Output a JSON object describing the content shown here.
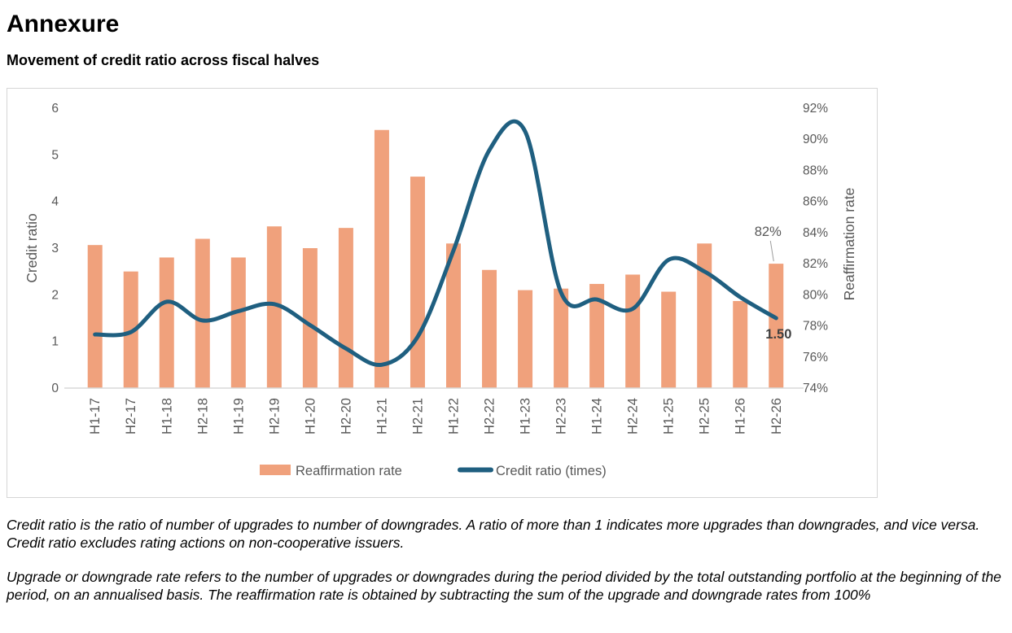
{
  "page": {
    "title": "Annexure",
    "subtitle": "Movement of credit ratio across fiscal halves",
    "footnotes": [
      "Credit ratio is the ratio of number of upgrades to number of downgrades. A ratio of more than 1 indicates more upgrades than downgrades, and vice versa. Credit ratio excludes rating actions on non-cooperative issuers.",
      "Upgrade or downgrade rate refers to the number of upgrades or downgrades during the period divided by the total outstanding portfolio at the beginning of the period, on an annualised basis. The reaffirmation rate is obtained by subtracting the sum of the upgrade and downgrade rates from 100%"
    ]
  },
  "chart_data": {
    "type": "combo",
    "categories": [
      "H1-17",
      "H2-17",
      "H1-18",
      "H2-18",
      "H1-19",
      "H2-19",
      "H1-20",
      "H2-20",
      "H1-21",
      "H2-21",
      "H1-22",
      "H2-22",
      "H1-23",
      "H2-23",
      "H1-24",
      "H2-24",
      "H1-25",
      "H2-25",
      "H1-26",
      "H2-26"
    ],
    "series": [
      {
        "name": "Reaffirmation rate",
        "type": "bar",
        "axis": "right",
        "color": "#F0A17C",
        "values": [
          83.2,
          81.5,
          82.4,
          83.6,
          82.4,
          84.4,
          83.0,
          84.3,
          90.6,
          87.6,
          83.3,
          81.6,
          80.3,
          80.4,
          80.7,
          81.3,
          80.2,
          83.3,
          79.6,
          82.0
        ]
      },
      {
        "name": "Credit ratio (times)",
        "type": "line",
        "axis": "left",
        "color": "#1F5F80",
        "values": [
          1.15,
          1.2,
          1.85,
          1.45,
          1.65,
          1.8,
          1.35,
          0.85,
          0.5,
          1.1,
          2.95,
          5.1,
          5.5,
          2.05,
          1.9,
          1.7,
          2.75,
          2.5,
          1.95,
          1.5
        ]
      }
    ],
    "left_axis": {
      "title": "Credit ratio",
      "min": 0,
      "max": 6,
      "step": 1,
      "ticks": [
        "0",
        "1",
        "2",
        "3",
        "4",
        "5",
        "6"
      ]
    },
    "right_axis": {
      "title": "Reaffirmation rate",
      "min": 74,
      "max": 92,
      "step": 2,
      "ticks": [
        "74%",
        "76%",
        "78%",
        "80%",
        "82%",
        "84%",
        "86%",
        "88%",
        "90%",
        "92%"
      ]
    },
    "annotations": [
      {
        "text": "82%",
        "attached_to": "H2-26 bar top"
      },
      {
        "text": "1.50",
        "attached_to": "H2-26 line point"
      }
    ],
    "legend_position": "bottom",
    "grid": false,
    "colors": {
      "bar": "#F0A17C",
      "line": "#1F5F80",
      "axis_text": "#595959",
      "baseline": "#D9D9D9",
      "leader_line": "#9E9E9E",
      "line_label_text": "#404040"
    }
  }
}
